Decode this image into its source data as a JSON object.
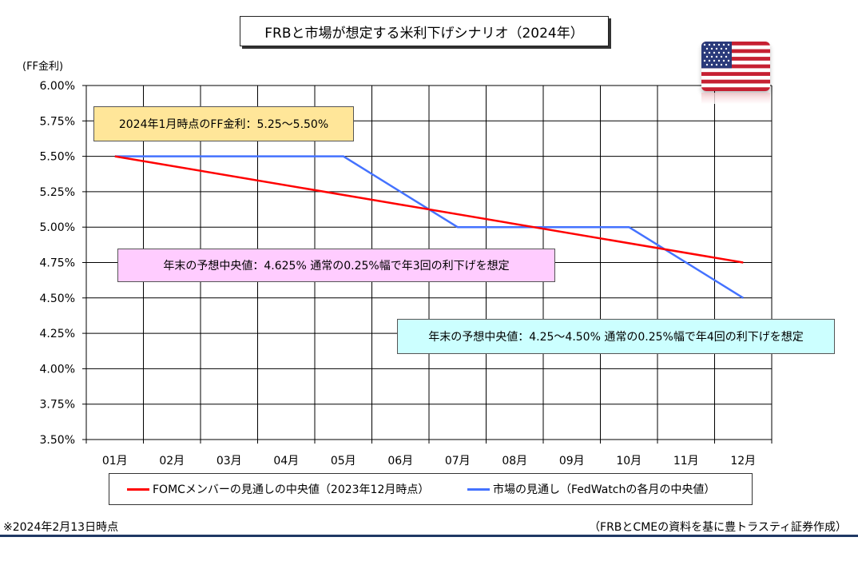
{
  "title": "FRBと市場が想定する米利下げシナリオ（2024年）",
  "unit_label": "(FF金利)",
  "chart_data": {
    "type": "line",
    "categories": [
      "01月",
      "02月",
      "03月",
      "04月",
      "05月",
      "06月",
      "07月",
      "08月",
      "09月",
      "10月",
      "11月",
      "12月"
    ],
    "ylim": [
      3.5,
      6.0
    ],
    "yticks": [
      "6.00%",
      "5.75%",
      "5.50%",
      "5.25%",
      "5.00%",
      "4.75%",
      "4.50%",
      "4.25%",
      "4.00%",
      "3.75%",
      "3.50%"
    ],
    "ytick_values": [
      6.0,
      5.75,
      5.5,
      5.25,
      5.0,
      4.75,
      4.5,
      4.25,
      4.0,
      3.75,
      3.5
    ],
    "grid": true,
    "legend_position": "bottom",
    "series": [
      {
        "name": "FOMCメンバーの見通しの中央値（2023年12月時点）",
        "color": "#ff0000",
        "points": [
          [
            1,
            5.5
          ],
          [
            12,
            4.75
          ]
        ]
      },
      {
        "name": "市場の見通し（FedWatchの各月の中央値）",
        "color": "#4472ff",
        "points": [
          [
            1,
            5.5
          ],
          [
            2,
            5.5
          ],
          [
            3,
            5.5
          ],
          [
            4,
            5.5
          ],
          [
            5,
            5.5
          ],
          [
            7,
            5.0
          ],
          [
            8,
            5.0
          ],
          [
            9,
            5.0
          ],
          [
            10,
            5.0
          ],
          [
            12,
            4.5
          ]
        ]
      }
    ]
  },
  "annotations": {
    "current": "2024年1月時点のFF金利：5.25～5.50%",
    "fomc": "年末の予想中央値：4.625%  通常の0.25%幅で年3回の利下げを想定",
    "market": "年末の予想中央値：4.25～4.50%  通常の0.25%幅で年4回の利下げを想定"
  },
  "footer": {
    "date_note": "※2024年2月13日時点",
    "source": "（FRBとCMEの資料を基に豊トラスティ証券作成）"
  },
  "flag_icon": "us-flag-icon"
}
